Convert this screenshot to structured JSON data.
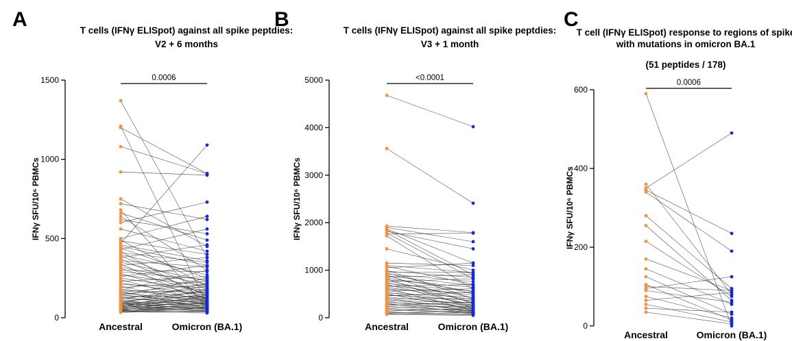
{
  "chart_data": [
    {
      "type": "scatter",
      "panel": "A",
      "title": [
        "T cells (IFNγ ELISpot) against all spike peptdies:",
        "V2 + 6 months"
      ],
      "subtitle": "",
      "ylabel": "IFNγ SFU/10⁶ PBMCs",
      "categories": [
        "Ancestral",
        "Omicron (BA.1)"
      ],
      "ylim": [
        0,
        1500
      ],
      "yticks": [
        "0",
        "500",
        "1000",
        "1500"
      ],
      "pvalue": "0.0006",
      "colors": {
        "Ancestral": "#F4913A",
        "Omicron (BA.1)": "#1428E0"
      },
      "pairs": [
        [
          1370,
          380
        ],
        [
          1210,
          80
        ],
        [
          1200,
          910
        ],
        [
          1080,
          910
        ],
        [
          920,
          900
        ],
        [
          750,
          450
        ],
        [
          720,
          620
        ],
        [
          680,
          60
        ],
        [
          660,
          490
        ],
        [
          640,
          300
        ],
        [
          620,
          530
        ],
        [
          600,
          730
        ],
        [
          560,
          420
        ],
        [
          500,
          640
        ],
        [
          490,
          200
        ],
        [
          485,
          400
        ],
        [
          470,
          1090
        ],
        [
          460,
          360
        ],
        [
          450,
          330
        ],
        [
          440,
          250
        ],
        [
          430,
          560
        ],
        [
          420,
          110
        ],
        [
          410,
          350
        ],
        [
          400,
          270
        ],
        [
          390,
          180
        ],
        [
          380,
          460
        ],
        [
          370,
          140
        ],
        [
          360,
          320
        ],
        [
          350,
          230
        ],
        [
          340,
          90
        ],
        [
          330,
          380
        ],
        [
          320,
          210
        ],
        [
          310,
          150
        ],
        [
          300,
          290
        ],
        [
          290,
          240
        ],
        [
          280,
          120
        ],
        [
          270,
          200
        ],
        [
          260,
          330
        ],
        [
          250,
          170
        ],
        [
          240,
          100
        ],
        [
          230,
          260
        ],
        [
          220,
          140
        ],
        [
          210,
          190
        ],
        [
          200,
          80
        ],
        [
          190,
          230
        ],
        [
          180,
          120
        ],
        [
          175,
          300
        ],
        [
          170,
          160
        ],
        [
          165,
          60
        ],
        [
          160,
          210
        ],
        [
          155,
          110
        ],
        [
          150,
          180
        ],
        [
          145,
          90
        ],
        [
          140,
          250
        ],
        [
          135,
          130
        ],
        [
          130,
          70
        ],
        [
          125,
          160
        ],
        [
          120,
          100
        ],
        [
          115,
          200
        ],
        [
          110,
          60
        ],
        [
          105,
          140
        ],
        [
          100,
          90
        ],
        [
          98,
          170
        ],
        [
          95,
          50
        ],
        [
          92,
          120
        ],
        [
          90,
          80
        ],
        [
          88,
          220
        ],
        [
          85,
          60
        ],
        [
          82,
          110
        ],
        [
          80,
          150
        ],
        [
          78,
          40
        ],
        [
          75,
          90
        ],
        [
          72,
          130
        ],
        [
          70,
          55
        ],
        [
          68,
          180
        ],
        [
          65,
          75
        ],
        [
          62,
          100
        ],
        [
          60,
          45
        ],
        [
          58,
          140
        ],
        [
          55,
          65
        ],
        [
          52,
          85
        ],
        [
          50,
          35
        ],
        [
          48,
          120
        ],
        [
          46,
          55
        ],
        [
          44,
          70
        ],
        [
          42,
          40
        ],
        [
          40,
          95
        ],
        [
          38,
          30
        ],
        [
          36,
          60
        ],
        [
          34,
          45
        ]
      ]
    },
    {
      "type": "scatter",
      "panel": "B",
      "title": [
        "T cells (IFNγ ELISpot) against all spike peptdies:",
        "V3 + 1 month"
      ],
      "subtitle": "",
      "ylabel": "IFNγ SFU/10⁶ PBMCs",
      "categories": [
        "Ancestral",
        "Omicron (BA.1)"
      ],
      "ylim": [
        0,
        5000
      ],
      "yticks": [
        "0",
        "1000",
        "2000",
        "3000",
        "4000",
        "5000"
      ],
      "pvalue": "<0.0001",
      "colors": {
        "Ancestral": "#F4913A",
        "Omicron (BA.1)": "#1428E0"
      },
      "pairs": [
        [
          4680,
          4020
        ],
        [
          3560,
          2410
        ],
        [
          1930,
          1790
        ],
        [
          1900,
          1600
        ],
        [
          1870,
          1150
        ],
        [
          1850,
          900
        ],
        [
          1820,
          1450
        ],
        [
          1780,
          820
        ],
        [
          1760,
          1780
        ],
        [
          1720,
          600
        ],
        [
          1450,
          1000
        ],
        [
          1150,
          1100
        ],
        [
          1100,
          950
        ],
        [
          1080,
          700
        ],
        [
          1050,
          1150
        ],
        [
          1000,
          400
        ],
        [
          980,
          850
        ],
        [
          960,
          950
        ],
        [
          940,
          500
        ],
        [
          920,
          760
        ],
        [
          900,
          300
        ],
        [
          880,
          680
        ],
        [
          860,
          900
        ],
        [
          840,
          550
        ],
        [
          820,
          200
        ],
        [
          800,
          640
        ],
        [
          780,
          420
        ],
        [
          760,
          820
        ],
        [
          740,
          330
        ],
        [
          720,
          560
        ],
        [
          700,
          250
        ],
        [
          680,
          470
        ],
        [
          660,
          700
        ],
        [
          640,
          380
        ],
        [
          620,
          150
        ],
        [
          600,
          520
        ],
        [
          580,
          290
        ],
        [
          560,
          610
        ],
        [
          540,
          230
        ],
        [
          520,
          430
        ],
        [
          500,
          180
        ],
        [
          480,
          360
        ],
        [
          460,
          540
        ],
        [
          440,
          270
        ],
        [
          420,
          120
        ],
        [
          400,
          400
        ],
        [
          380,
          210
        ],
        [
          360,
          320
        ],
        [
          340,
          150
        ],
        [
          320,
          260
        ],
        [
          300,
          100
        ],
        [
          280,
          200
        ],
        [
          260,
          330
        ],
        [
          240,
          140
        ],
        [
          220,
          240
        ],
        [
          200,
          90
        ],
        [
          180,
          170
        ],
        [
          160,
          120
        ],
        [
          140,
          200
        ],
        [
          120,
          80
        ],
        [
          100,
          150
        ],
        [
          90,
          60
        ],
        [
          80,
          110
        ],
        [
          70,
          50
        ]
      ]
    },
    {
      "type": "scatter",
      "panel": "C",
      "title": [
        "T cell (IFNγ ELISpot) response to regions of spike",
        "with mutations in omicron BA.1"
      ],
      "subtitle": "(51 peptides / 178)",
      "ylabel": "IFNγ SFU/10⁶ PBMCs",
      "categories": [
        "Ancestral",
        "Omicron (BA.1)"
      ],
      "ylim": [
        0,
        600
      ],
      "yticks": [
        "0",
        "200",
        "400",
        "600"
      ],
      "pvalue": "0.0006",
      "colors": {
        "Ancestral": "#F4913A",
        "Omicron (BA.1)": "#1428E0"
      },
      "pairs": [
        [
          590,
          0
        ],
        [
          360,
          80
        ],
        [
          350,
          490
        ],
        [
          345,
          235
        ],
        [
          340,
          190
        ],
        [
          280,
          95
        ],
        [
          255,
          65
        ],
        [
          215,
          75
        ],
        [
          170,
          90
        ],
        [
          145,
          55
        ],
        [
          125,
          30
        ],
        [
          105,
          15
        ],
        [
          100,
          90
        ],
        [
          95,
          125
        ],
        [
          90,
          60
        ],
        [
          75,
          20
        ],
        [
          65,
          85
        ],
        [
          55,
          10
        ],
        [
          45,
          35
        ],
        [
          35,
          5
        ]
      ]
    }
  ]
}
